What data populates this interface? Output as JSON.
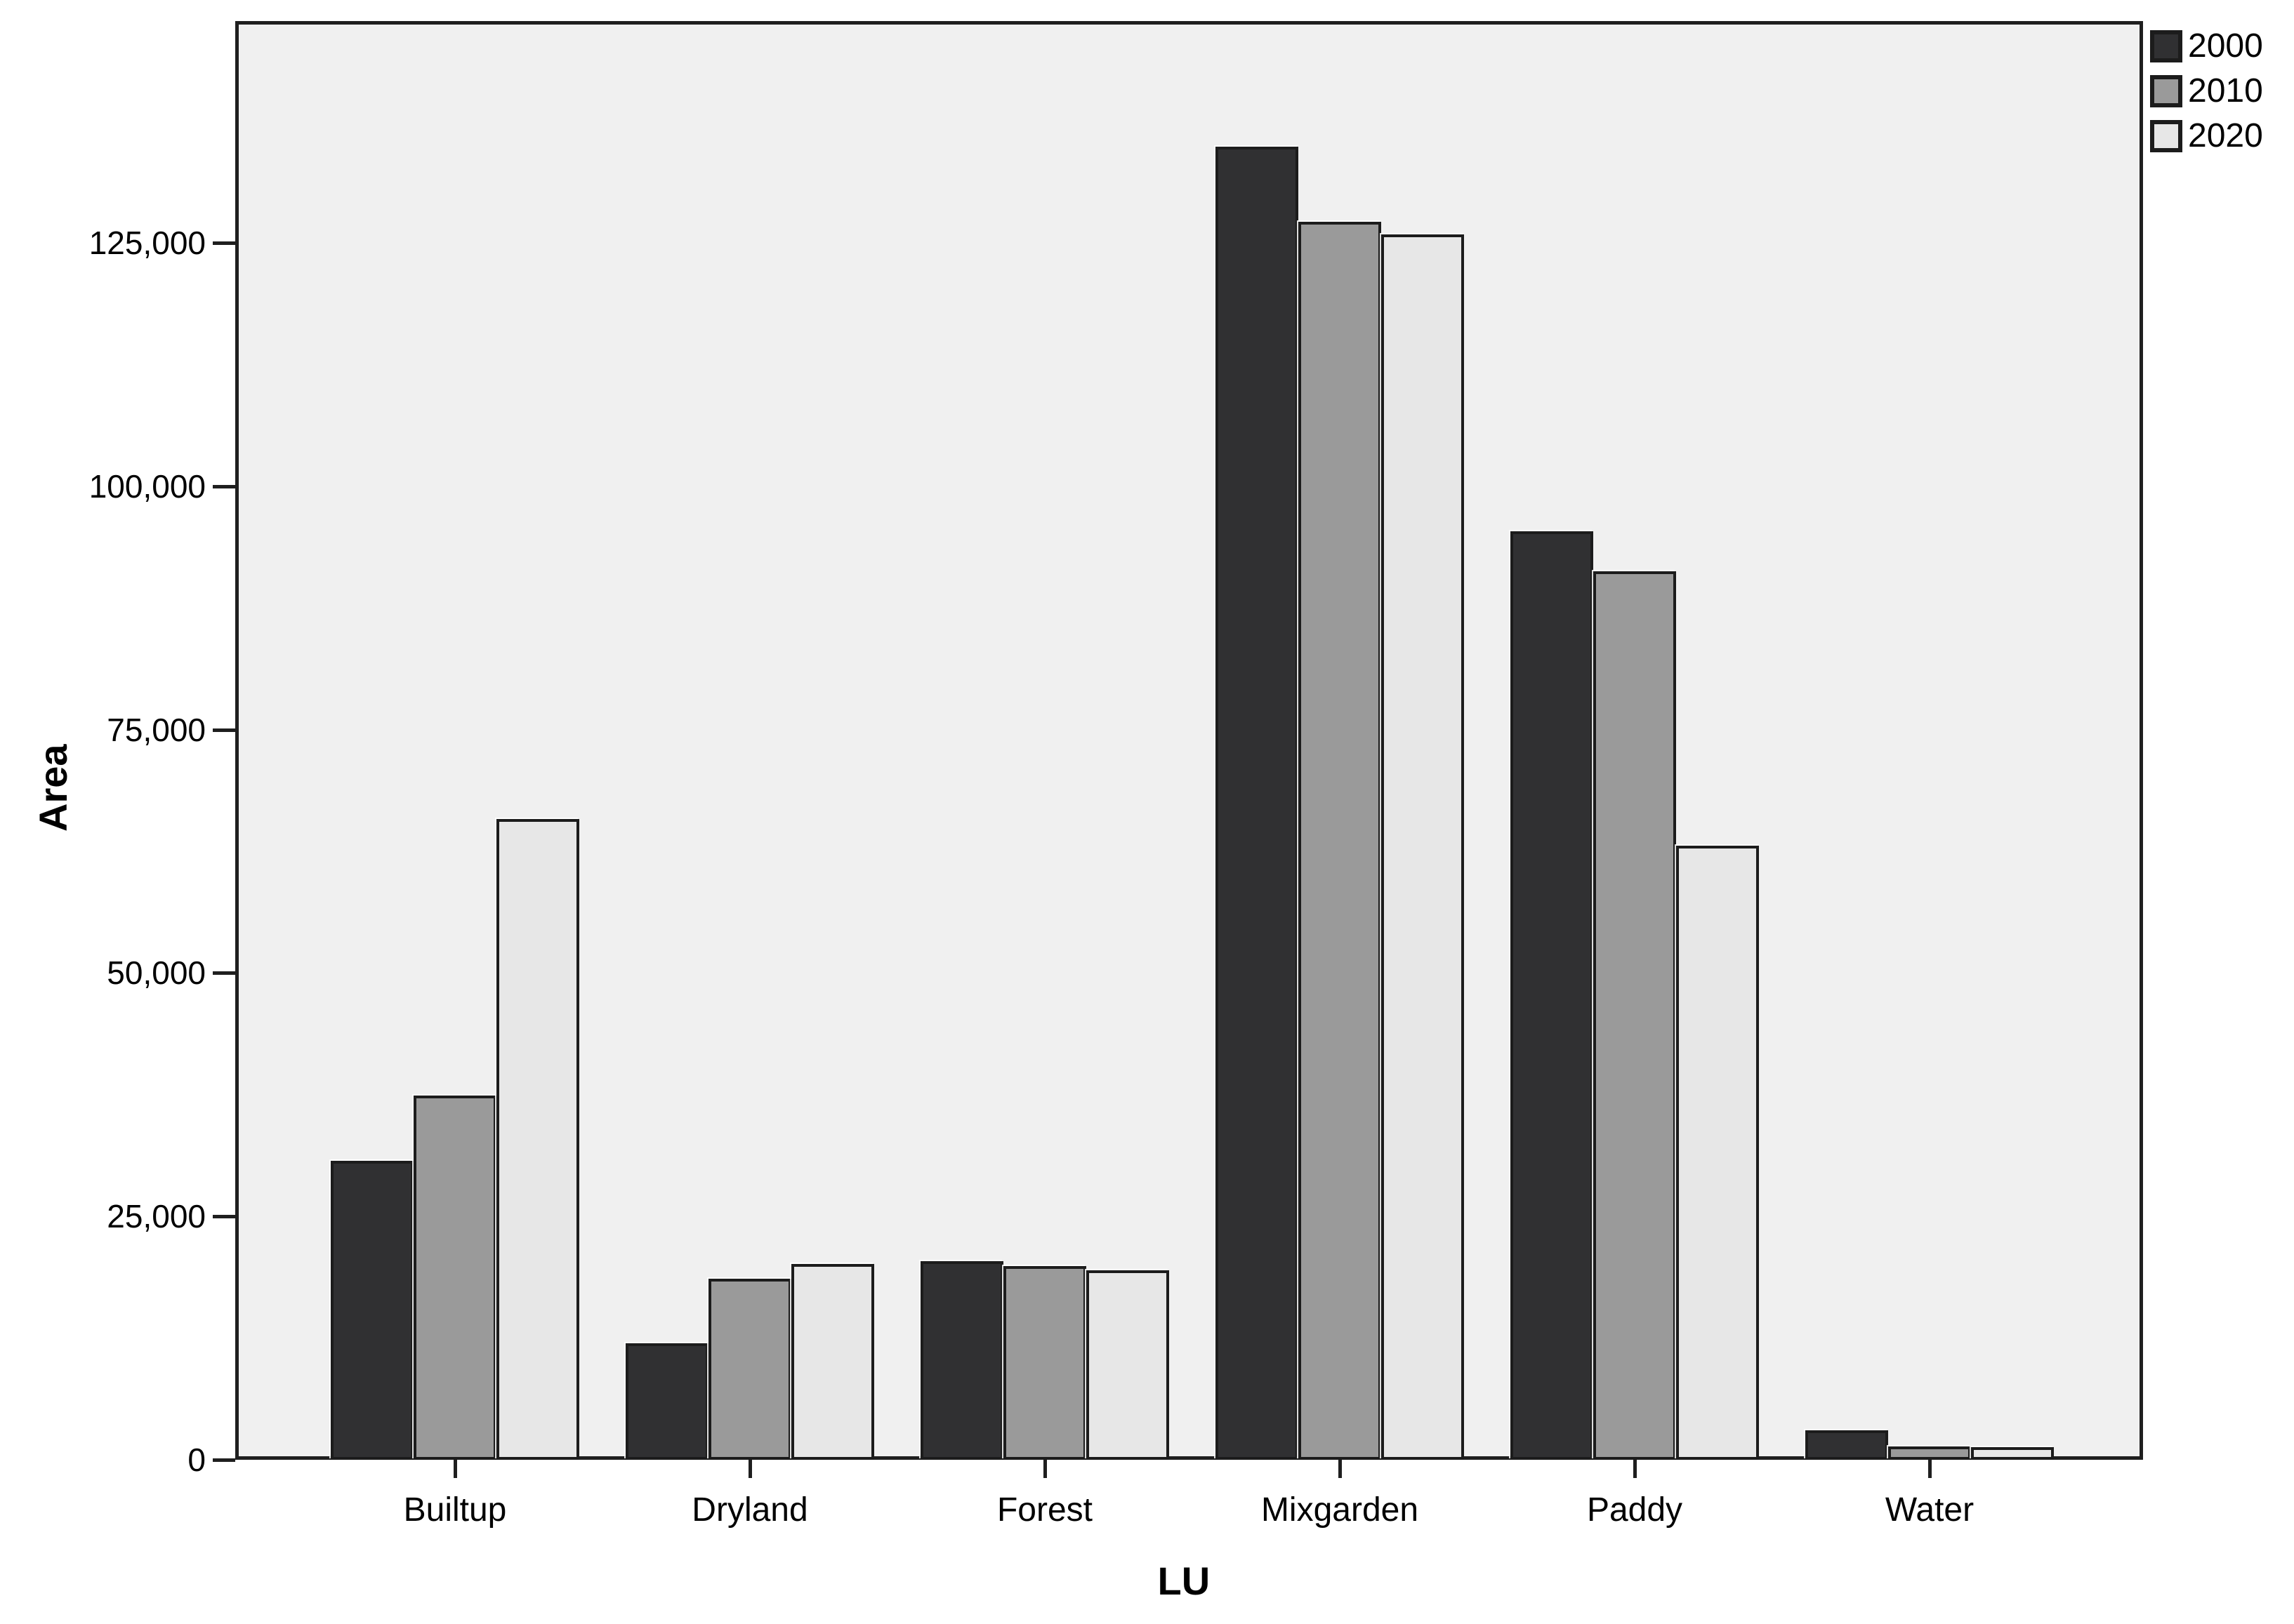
{
  "chart_data": {
    "type": "bar",
    "title": "",
    "xlabel": "LU",
    "ylabel": "Area",
    "categories": [
      "Builtup",
      "Dryland",
      "Forest",
      "Mixgarden",
      "Paddy",
      "Water"
    ],
    "series": [
      {
        "name": "2000",
        "color": "#303032",
        "values": [
          30700,
          12000,
          20400,
          134900,
          95400,
          3000
        ]
      },
      {
        "name": "2010",
        "color": "#9a9a9a",
        "values": [
          37400,
          18600,
          19900,
          127200,
          91300,
          1400
        ]
      },
      {
        "name": "2020",
        "color": "#e7e7e7",
        "values": [
          65800,
          20100,
          19500,
          125900,
          63100,
          1300
        ]
      }
    ],
    "ylim": [
      0,
      147800
    ],
    "yticks": {
      "values": [
        0,
        25000,
        50000,
        75000,
        100000,
        125000
      ],
      "labels": [
        "0",
        "25,000",
        "50,000",
        "75,000",
        "100,000",
        "125,000"
      ]
    },
    "grid": false,
    "legend_position": "top-right",
    "colors": {
      "plot_background": "#f0f0f0",
      "axis_border": "#1f1f1f",
      "bar_border": "#1c1c1c",
      "text": "#000000"
    }
  }
}
